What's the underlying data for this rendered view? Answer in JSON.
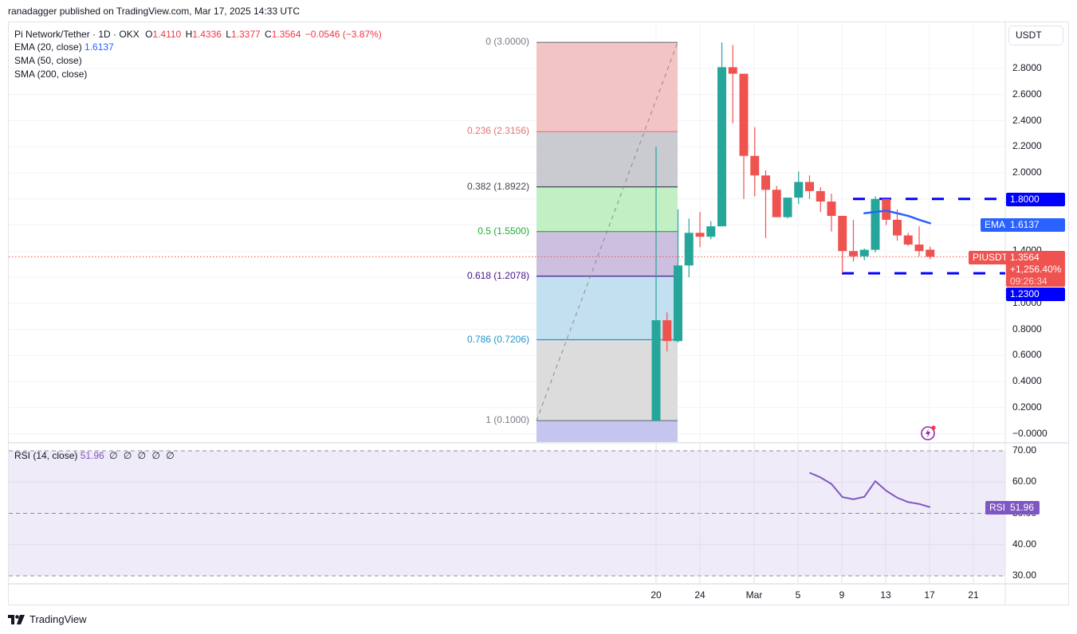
{
  "publish_line": "ranadagger published on TradingView.com, Mar 17, 2025 14:33 UTC",
  "legend": {
    "symbol": "Pi Network/Tether · 1D · OKX",
    "open_label": "O",
    "open": "1.4110",
    "high_label": "H",
    "high": "1.4336",
    "low_label": "L",
    "low": "1.3377",
    "close_label": "C",
    "close": "1.3564",
    "change": "−0.0546 (−3.87%)",
    "ema_label": "EMA (20, close)",
    "ema_value": "1.6137",
    "sma50_label": "SMA (50, close)",
    "sma200_label": "SMA (200, close)"
  },
  "rsi_legend": {
    "label": "RSI (14, close)",
    "value": "51.96",
    "extras": "∅ ∅ ∅ ∅ ∅"
  },
  "currency_button": "USDT",
  "price_axis": [
    "2.8000",
    "2.6000",
    "2.4000",
    "2.2000",
    "2.0000",
    "1.4000",
    "1.0000",
    "0.8000",
    "0.6000",
    "0.4000",
    "0.2000",
    "−0.0000"
  ],
  "rsi_axis": [
    "70.00",
    "60.00",
    "50.00",
    "40.00",
    "30.00"
  ],
  "time_axis": [
    "20",
    "24",
    "Mar",
    "5",
    "9",
    "13",
    "17",
    "21"
  ],
  "tags": {
    "resistance": "1.8000",
    "support": "1.2300",
    "ema_name": "EMA",
    "ema_value": "1.6137",
    "symbol_name": "PIUSDT",
    "last_price": "1.3564",
    "change_pct": "+1,256.40%",
    "countdown": "09:26:34",
    "rsi_name": "RSI",
    "rsi_value": "51.96"
  },
  "fib_levels": [
    {
      "label": "0 (3.0000)",
      "ratio": 0,
      "price": 3.0,
      "color": "#787b86"
    },
    {
      "label": "0.236 (2.3156)",
      "ratio": 0.236,
      "price": 2.3156,
      "color": "#e57373"
    },
    {
      "label": "0.382 (1.8922)",
      "ratio": 0.382,
      "price": 1.8922,
      "color": "#434651"
    },
    {
      "label": "0.5 (1.5500)",
      "ratio": 0.5,
      "price": 1.55,
      "color": "#22ab35"
    },
    {
      "label": "0.618 (1.2078)",
      "ratio": 0.618,
      "price": 1.2078,
      "color": "#4a148c"
    },
    {
      "label": "0.786 (0.7206)",
      "ratio": 0.786,
      "price": 0.7206,
      "color": "#2196c8"
    },
    {
      "label": "1 (0.1000)",
      "ratio": 1,
      "price": 0.1,
      "color": "#787b86"
    }
  ],
  "branding": "TradingView",
  "colors": {
    "up": "#26a69a",
    "down": "#ef5350",
    "ema": "#2962ff",
    "rsi": "#7e57c2",
    "level_line": "#0000ff",
    "last_price": "#ef5350"
  },
  "chart_data": {
    "type": "candlestick",
    "title": "Pi Network/Tether · 1D · OKX",
    "ylabel": "USDT",
    "ylim": [
      -0.05,
      3.05
    ],
    "x": [
      "Feb 20",
      "Feb 21",
      "Feb 22",
      "Feb 23",
      "Feb 24",
      "Feb 25",
      "Feb 26",
      "Feb 27",
      "Feb 28",
      "Mar 1",
      "Mar 2",
      "Mar 3",
      "Mar 4",
      "Mar 5",
      "Mar 6",
      "Mar 7",
      "Mar 8",
      "Mar 9",
      "Mar 10",
      "Mar 11",
      "Mar 12",
      "Mar 13",
      "Mar 14",
      "Mar 15",
      "Mar 16",
      "Mar 17"
    ],
    "candles": [
      {
        "o": 0.1,
        "h": 2.2,
        "l": 0.1,
        "c": 0.87
      },
      {
        "o": 0.87,
        "h": 0.93,
        "l": 0.63,
        "c": 0.71
      },
      {
        "o": 0.71,
        "h": 1.72,
        "l": 0.7,
        "c": 1.29
      },
      {
        "o": 1.29,
        "h": 1.65,
        "l": 1.2,
        "c": 1.54
      },
      {
        "o": 1.54,
        "h": 1.7,
        "l": 1.43,
        "c": 1.51
      },
      {
        "o": 1.51,
        "h": 1.63,
        "l": 1.49,
        "c": 1.59
      },
      {
        "o": 1.59,
        "h": 3.0,
        "l": 1.59,
        "c": 2.81
      },
      {
        "o": 2.81,
        "h": 2.98,
        "l": 2.38,
        "c": 2.76
      },
      {
        "o": 2.76,
        "h": 2.74,
        "l": 1.8,
        "c": 2.13
      },
      {
        "o": 2.13,
        "h": 2.35,
        "l": 1.82,
        "c": 1.98
      },
      {
        "o": 1.98,
        "h": 2.02,
        "l": 1.5,
        "c": 1.87
      },
      {
        "o": 1.87,
        "h": 1.9,
        "l": 1.66,
        "c": 1.66
      },
      {
        "o": 1.66,
        "h": 1.81,
        "l": 1.65,
        "c": 1.81
      },
      {
        "o": 1.81,
        "h": 2.01,
        "l": 1.76,
        "c": 1.93
      },
      {
        "o": 1.93,
        "h": 1.98,
        "l": 1.8,
        "c": 1.86
      },
      {
        "o": 1.86,
        "h": 1.89,
        "l": 1.7,
        "c": 1.78
      },
      {
        "o": 1.78,
        "h": 1.84,
        "l": 1.55,
        "c": 1.67
      },
      {
        "o": 1.67,
        "h": 1.67,
        "l": 1.23,
        "c": 1.4
      },
      {
        "o": 1.4,
        "h": 1.64,
        "l": 1.32,
        "c": 1.36
      },
      {
        "o": 1.36,
        "h": 1.42,
        "l": 1.33,
        "c": 1.41
      },
      {
        "o": 1.41,
        "h": 1.82,
        "l": 1.39,
        "c": 1.8
      },
      {
        "o": 1.8,
        "h": 1.8,
        "l": 1.6,
        "c": 1.64
      },
      {
        "o": 1.64,
        "h": 1.72,
        "l": 1.48,
        "c": 1.52
      },
      {
        "o": 1.52,
        "h": 1.54,
        "l": 1.44,
        "c": 1.45
      },
      {
        "o": 1.45,
        "h": 1.59,
        "l": 1.36,
        "c": 1.4
      },
      {
        "o": 1.411,
        "h": 1.4336,
        "l": 1.3377,
        "c": 1.3564
      }
    ],
    "ema20": {
      "x": [
        "Mar 11",
        "Mar 12",
        "Mar 13",
        "Mar 14",
        "Mar 15",
        "Mar 16",
        "Mar 17"
      ],
      "values": [
        1.69,
        1.7,
        1.71,
        1.69,
        1.67,
        1.64,
        1.6137
      ]
    },
    "horizontal_levels": [
      1.8,
      1.23
    ],
    "rsi14": {
      "x": [
        "Mar 6",
        "Mar 7",
        "Mar 8",
        "Mar 9",
        "Mar 10",
        "Mar 11",
        "Mar 12",
        "Mar 13",
        "Mar 14",
        "Mar 15",
        "Mar 16",
        "Mar 17"
      ],
      "values": [
        63.0,
        61.5,
        59.4,
        55.2,
        54.5,
        55.3,
        60.3,
        57.2,
        55.0,
        53.6,
        53.0,
        51.96
      ],
      "ylim": [
        30,
        70
      ],
      "bands": [
        70,
        50,
        30
      ]
    },
    "fibonacci_retracement": {
      "from": 0.1,
      "to": 3.0,
      "levels": [
        0,
        0.236,
        0.382,
        0.5,
        0.618,
        0.786,
        1
      ]
    },
    "xlabel": "",
    "legend_position": "top-left"
  }
}
